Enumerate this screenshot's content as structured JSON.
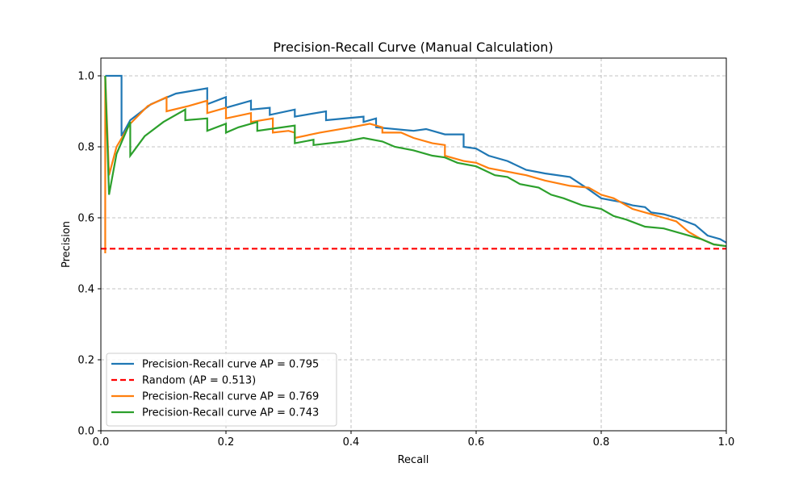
{
  "chart_data": {
    "type": "line",
    "title": "Precision-Recall Curve (Manual Calculation)",
    "xlabel": "Recall",
    "ylabel": "Precision",
    "xlim": [
      0,
      1.0
    ],
    "ylim": [
      0,
      1.05
    ],
    "x_ticks": [
      "0.0",
      "0.2",
      "0.4",
      "0.6",
      "0.8",
      "1.0"
    ],
    "y_ticks": [
      "0.0",
      "0.2",
      "0.4",
      "0.6",
      "0.8",
      "1.0"
    ],
    "grid": true,
    "legend_position": "lower-left",
    "series": [
      {
        "name": "Precision-Recall curve AP = 0.795",
        "color": "#1f77b4",
        "style": "solid",
        "points": [
          [
            0.007,
            1.0
          ],
          [
            0.033,
            1.0
          ],
          [
            0.033,
            0.83
          ],
          [
            0.047,
            0.875
          ],
          [
            0.08,
            0.92
          ],
          [
            0.12,
            0.95
          ],
          [
            0.17,
            0.965
          ],
          [
            0.17,
            0.92
          ],
          [
            0.2,
            0.94
          ],
          [
            0.2,
            0.91
          ],
          [
            0.24,
            0.93
          ],
          [
            0.24,
            0.905
          ],
          [
            0.27,
            0.91
          ],
          [
            0.27,
            0.89
          ],
          [
            0.31,
            0.905
          ],
          [
            0.31,
            0.885
          ],
          [
            0.36,
            0.9
          ],
          [
            0.36,
            0.875
          ],
          [
            0.42,
            0.885
          ],
          [
            0.42,
            0.87
          ],
          [
            0.44,
            0.88
          ],
          [
            0.44,
            0.855
          ],
          [
            0.5,
            0.845
          ],
          [
            0.52,
            0.85
          ],
          [
            0.55,
            0.835
          ],
          [
            0.58,
            0.835
          ],
          [
            0.58,
            0.8
          ],
          [
            0.6,
            0.795
          ],
          [
            0.62,
            0.775
          ],
          [
            0.65,
            0.76
          ],
          [
            0.68,
            0.735
          ],
          [
            0.71,
            0.725
          ],
          [
            0.75,
            0.715
          ],
          [
            0.78,
            0.68
          ],
          [
            0.8,
            0.655
          ],
          [
            0.83,
            0.645
          ],
          [
            0.85,
            0.635
          ],
          [
            0.87,
            0.63
          ],
          [
            0.88,
            0.615
          ],
          [
            0.9,
            0.61
          ],
          [
            0.92,
            0.6
          ],
          [
            0.95,
            0.58
          ],
          [
            0.97,
            0.55
          ],
          [
            0.99,
            0.54
          ],
          [
            1.0,
            0.53
          ]
        ]
      },
      {
        "name": "Random (AP = 0.513)",
        "color": "#ff0000",
        "style": "dashed",
        "points": [
          [
            0.0,
            0.513
          ],
          [
            1.0,
            0.513
          ]
        ]
      },
      {
        "name": "Precision-Recall curve AP = 0.769",
        "color": "#ff7f0e",
        "style": "solid",
        "points": [
          [
            0.007,
            0.5
          ],
          [
            0.007,
            1.0
          ],
          [
            0.013,
            0.72
          ],
          [
            0.025,
            0.8
          ],
          [
            0.047,
            0.865
          ],
          [
            0.075,
            0.915
          ],
          [
            0.105,
            0.94
          ],
          [
            0.105,
            0.9
          ],
          [
            0.14,
            0.915
          ],
          [
            0.17,
            0.93
          ],
          [
            0.17,
            0.895
          ],
          [
            0.2,
            0.91
          ],
          [
            0.2,
            0.88
          ],
          [
            0.24,
            0.895
          ],
          [
            0.24,
            0.87
          ],
          [
            0.275,
            0.88
          ],
          [
            0.275,
            0.84
          ],
          [
            0.3,
            0.845
          ],
          [
            0.31,
            0.84
          ],
          [
            0.31,
            0.825
          ],
          [
            0.35,
            0.84
          ],
          [
            0.4,
            0.855
          ],
          [
            0.43,
            0.865
          ],
          [
            0.45,
            0.855
          ],
          [
            0.45,
            0.84
          ],
          [
            0.48,
            0.84
          ],
          [
            0.5,
            0.825
          ],
          [
            0.53,
            0.81
          ],
          [
            0.55,
            0.805
          ],
          [
            0.55,
            0.775
          ],
          [
            0.58,
            0.76
          ],
          [
            0.6,
            0.755
          ],
          [
            0.62,
            0.74
          ],
          [
            0.65,
            0.73
          ],
          [
            0.68,
            0.72
          ],
          [
            0.71,
            0.705
          ],
          [
            0.75,
            0.69
          ],
          [
            0.78,
            0.685
          ],
          [
            0.8,
            0.665
          ],
          [
            0.82,
            0.655
          ],
          [
            0.85,
            0.625
          ],
          [
            0.88,
            0.61
          ],
          [
            0.9,
            0.6
          ],
          [
            0.92,
            0.59
          ],
          [
            0.94,
            0.56
          ],
          [
            0.96,
            0.54
          ],
          [
            0.98,
            0.525
          ],
          [
            1.0,
            0.52
          ]
        ]
      },
      {
        "name": "Precision-Recall curve AP = 0.743",
        "color": "#2ca02c",
        "style": "solid",
        "points": [
          [
            0.007,
            1.0
          ],
          [
            0.013,
            0.665
          ],
          [
            0.025,
            0.78
          ],
          [
            0.047,
            0.87
          ],
          [
            0.047,
            0.775
          ],
          [
            0.07,
            0.83
          ],
          [
            0.1,
            0.87
          ],
          [
            0.135,
            0.905
          ],
          [
            0.135,
            0.875
          ],
          [
            0.17,
            0.88
          ],
          [
            0.17,
            0.845
          ],
          [
            0.2,
            0.865
          ],
          [
            0.2,
            0.84
          ],
          [
            0.22,
            0.855
          ],
          [
            0.25,
            0.87
          ],
          [
            0.25,
            0.845
          ],
          [
            0.27,
            0.85
          ],
          [
            0.31,
            0.86
          ],
          [
            0.31,
            0.81
          ],
          [
            0.34,
            0.82
          ],
          [
            0.34,
            0.805
          ],
          [
            0.39,
            0.815
          ],
          [
            0.42,
            0.825
          ],
          [
            0.45,
            0.815
          ],
          [
            0.47,
            0.8
          ],
          [
            0.5,
            0.79
          ],
          [
            0.53,
            0.775
          ],
          [
            0.55,
            0.77
          ],
          [
            0.57,
            0.755
          ],
          [
            0.6,
            0.745
          ],
          [
            0.63,
            0.72
          ],
          [
            0.65,
            0.715
          ],
          [
            0.67,
            0.695
          ],
          [
            0.7,
            0.685
          ],
          [
            0.72,
            0.665
          ],
          [
            0.74,
            0.655
          ],
          [
            0.77,
            0.635
          ],
          [
            0.8,
            0.625
          ],
          [
            0.82,
            0.605
          ],
          [
            0.84,
            0.595
          ],
          [
            0.87,
            0.575
          ],
          [
            0.9,
            0.57
          ],
          [
            0.93,
            0.555
          ],
          [
            0.96,
            0.54
          ],
          [
            0.98,
            0.525
          ],
          [
            1.0,
            0.52
          ]
        ]
      }
    ]
  }
}
